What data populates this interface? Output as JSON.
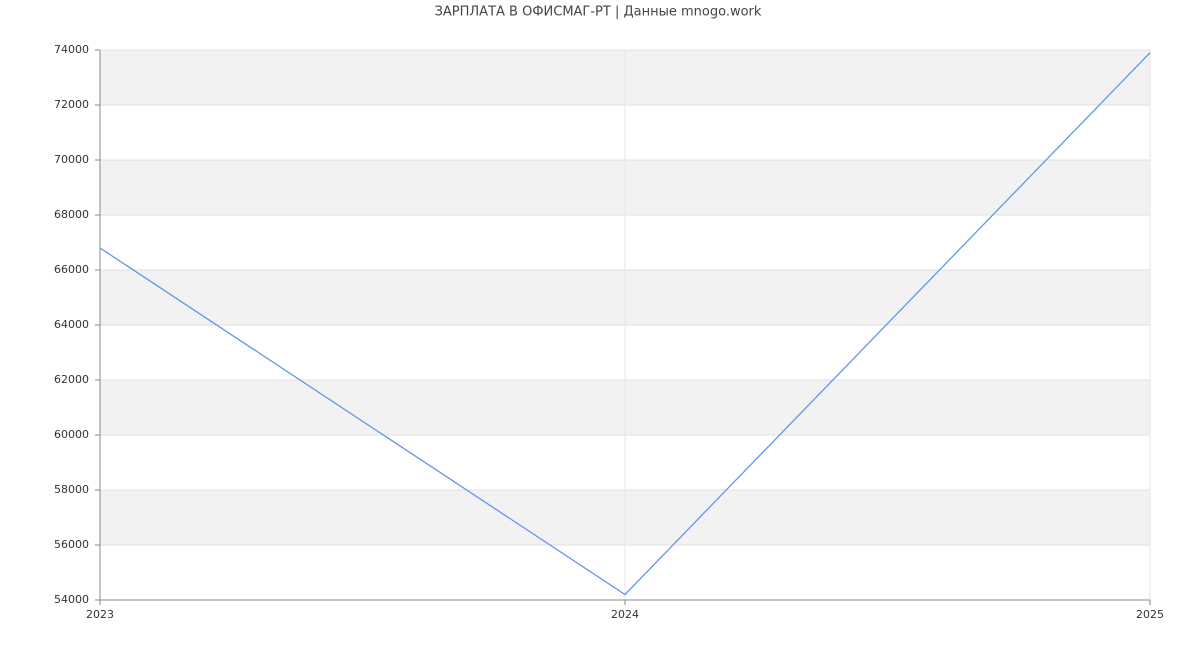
{
  "chart_data": {
    "type": "line",
    "title": "ЗАРПЛАТА В ОФИСМАГ-РТ | Данные mnogo.work",
    "x": [
      2023,
      2024,
      2025
    ],
    "xlim": [
      2023,
      2025
    ],
    "xticks": [
      2023,
      2024,
      2025
    ],
    "series": [
      {
        "color": "#6495ed",
        "values": [
          66800,
          54200,
          73900
        ]
      }
    ],
    "ylim": [
      54000,
      74000
    ],
    "yticks": [
      54000,
      56000,
      58000,
      60000,
      62000,
      64000,
      66000,
      68000,
      70000,
      72000,
      74000
    ],
    "grid": true
  }
}
